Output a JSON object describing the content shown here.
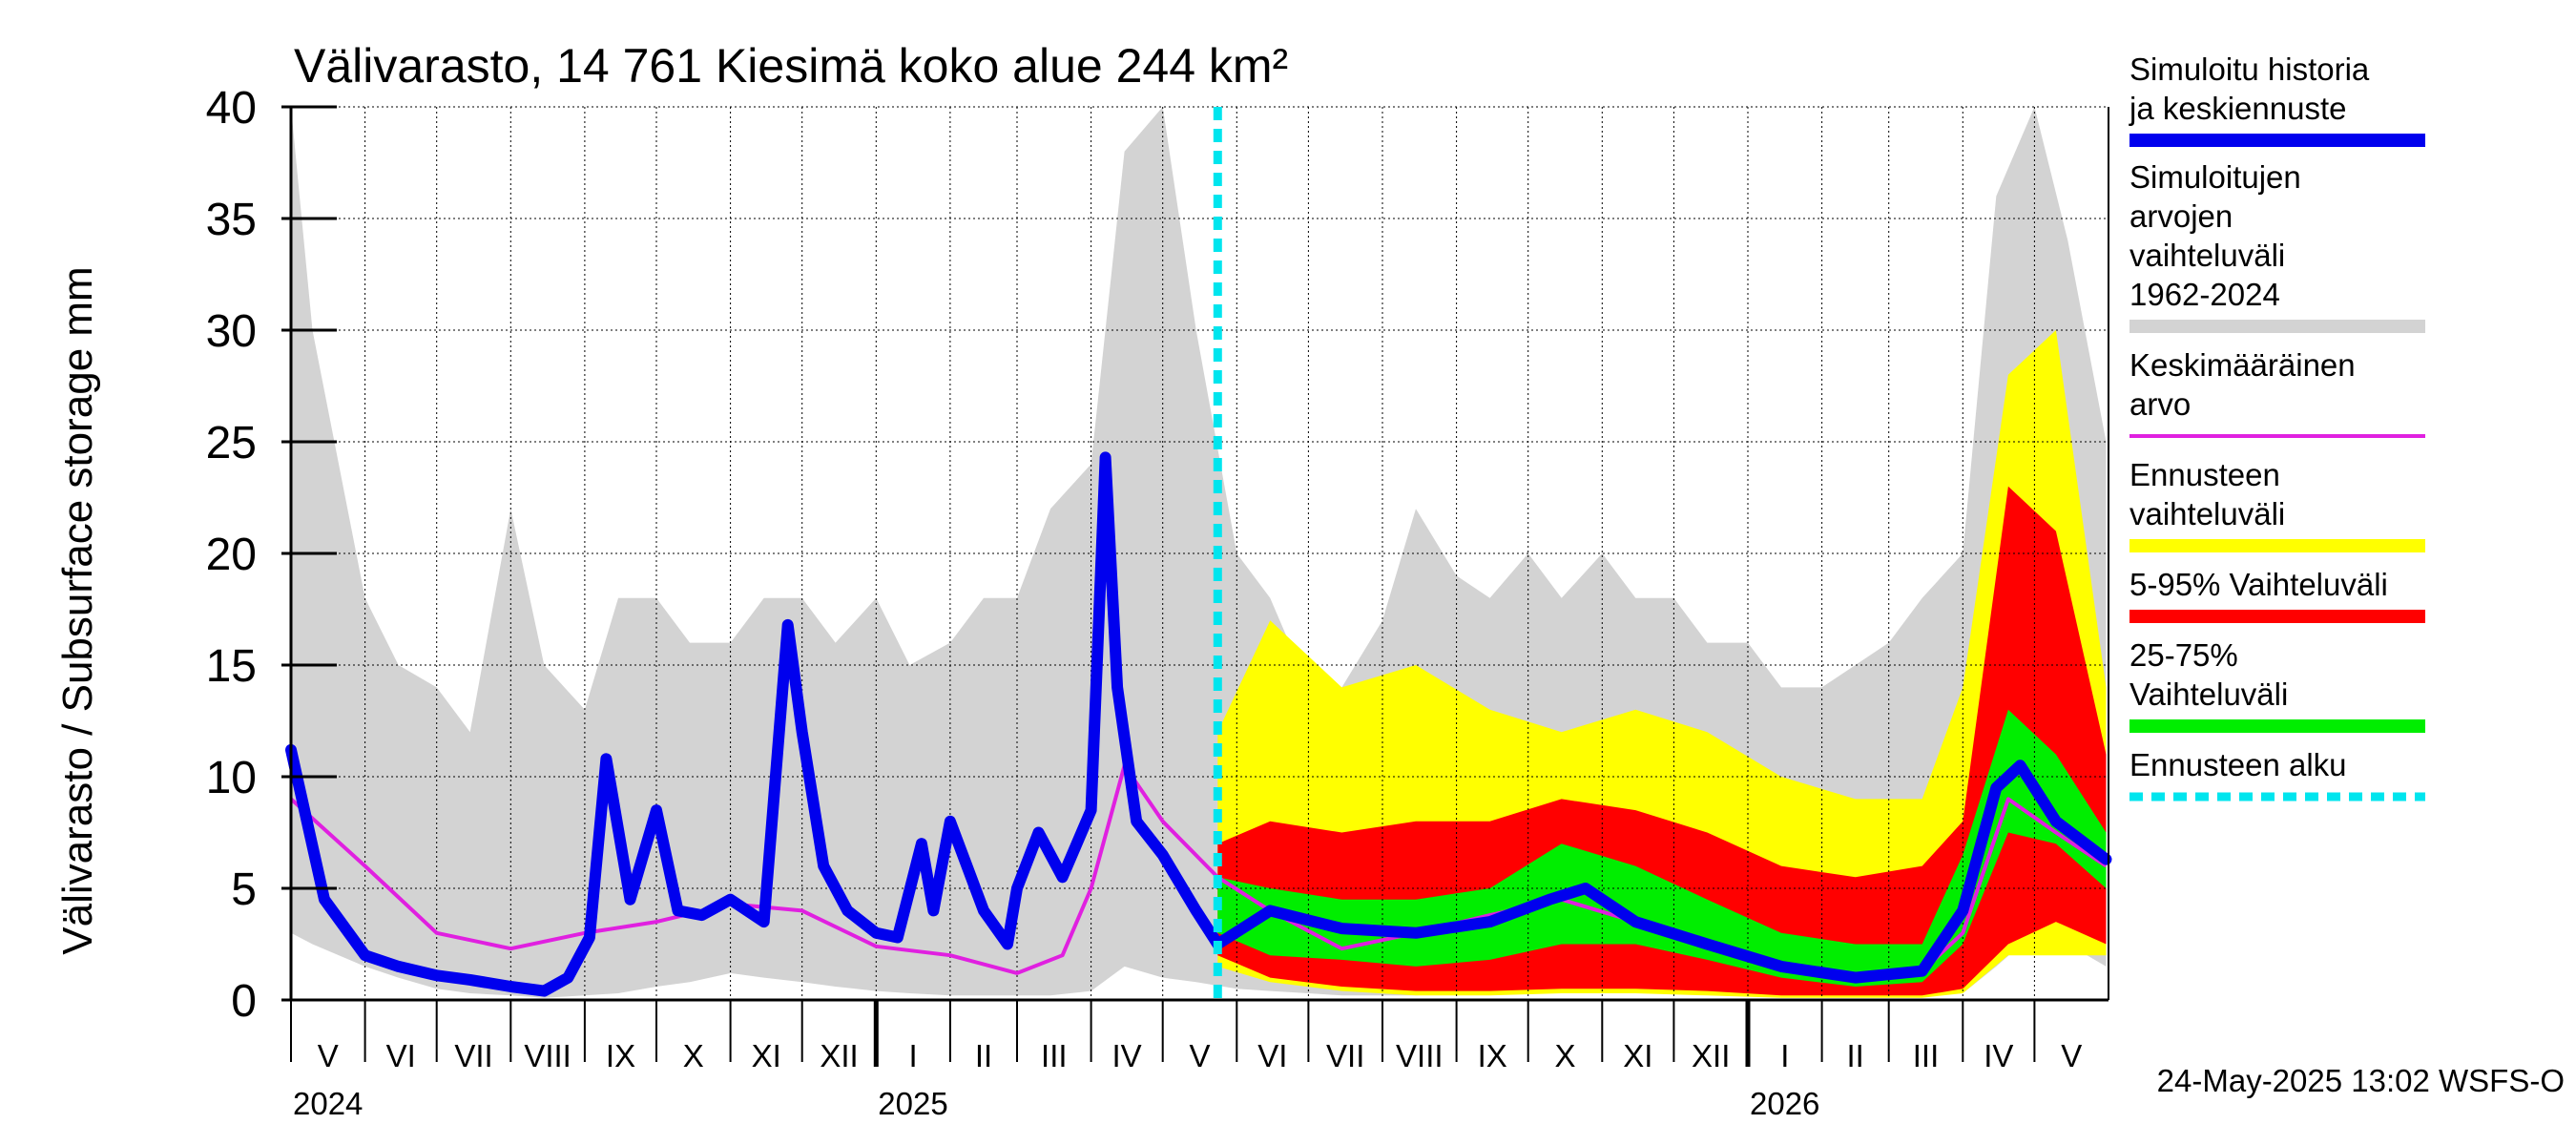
{
  "chart_data": {
    "type": "area",
    "title": "Välivarasto, 14 761 Kiesimä koko alue 244 km²",
    "ylabel": "Välivarasto / Subsurface storage  mm",
    "ylim": [
      0,
      40
    ],
    "yticks": [
      0,
      5,
      10,
      15,
      20,
      25,
      30,
      35,
      40
    ],
    "ytick_labels": [
      "0",
      "5",
      "10",
      "15",
      "20",
      "25",
      "30",
      "35",
      "40"
    ],
    "x_range": [
      "2024-05-01",
      "2026-05-31"
    ],
    "month_labels": [
      "V",
      "VI",
      "VII",
      "VIII",
      "IX",
      "X",
      "XI",
      "XII",
      "I",
      "II",
      "III",
      "IV",
      "V",
      "VI",
      "VII",
      "VIII",
      "IX",
      "X",
      "XI",
      "XII",
      "I",
      "II",
      "III",
      "IV",
      "V"
    ],
    "year_labels": [
      "2024",
      "2025",
      "2026"
    ],
    "grid": true,
    "legend_position": "right",
    "forecast_start": "2025-05-24",
    "footer": "24-May-2025 13:02 WSFS-O",
    "legend": [
      {
        "label": "Simuloitu historia ja keskiennuste",
        "color": "#0000ee"
      },
      {
        "label": "Simuloitujen arvojen vaihteluväli 1962-2024",
        "color": "#d3d3d3"
      },
      {
        "label": "Keskimääräinen arvo",
        "color": "#e020e0"
      },
      {
        "label": "Ennusteen vaihteluväli",
        "color": "#ffff00"
      },
      {
        "label": "5-95% Vaihteluväli",
        "color": "#ff0000"
      },
      {
        "label": "25-75% Vaihteluväli",
        "color": "#00ee00"
      },
      {
        "label": "Ennusteen alku",
        "color": "#00e5ee"
      }
    ],
    "series": [
      {
        "name": "Simuloitu historia ja keskiennuste",
        "x": [
          "2024-05-01",
          "2024-05-15",
          "2024-06-01",
          "2024-06-15",
          "2024-07-01",
          "2024-07-15",
          "2024-08-01",
          "2024-08-15",
          "2024-08-25",
          "2024-09-03",
          "2024-09-10",
          "2024-09-20",
          "2024-10-01",
          "2024-10-10",
          "2024-10-20",
          "2024-11-01",
          "2024-11-15",
          "2024-11-25",
          "2024-12-01",
          "2024-12-10",
          "2024-12-20",
          "2025-01-01",
          "2025-01-10",
          "2025-01-20",
          "2025-01-25",
          "2025-02-01",
          "2025-02-15",
          "2025-02-25",
          "2025-03-01",
          "2025-03-10",
          "2025-03-20",
          "2025-04-01",
          "2025-04-07",
          "2025-04-12",
          "2025-04-20",
          "2025-05-01",
          "2025-05-15",
          "2025-05-24",
          "2025-06-15",
          "2025-07-15",
          "2025-08-15",
          "2025-09-15",
          "2025-10-10",
          "2025-10-25",
          "2025-11-15",
          "2025-12-15",
          "2026-01-15",
          "2026-02-15",
          "2026-03-15",
          "2026-04-01",
          "2026-04-15",
          "2026-04-25",
          "2026-05-10",
          "2026-05-31"
        ],
        "y": [
          11.2,
          4.5,
          2.0,
          1.5,
          1.1,
          0.9,
          0.6,
          0.4,
          1.0,
          2.8,
          10.8,
          4.5,
          8.5,
          4.0,
          3.8,
          4.5,
          3.5,
          16.8,
          12.0,
          6.0,
          4.0,
          3.0,
          2.8,
          7.0,
          4.0,
          8.0,
          4.0,
          2.5,
          5.0,
          7.5,
          5.5,
          8.5,
          24.3,
          14.0,
          8.0,
          6.5,
          4.0,
          2.5,
          4.0,
          3.2,
          3.0,
          3.5,
          4.5,
          5.0,
          3.5,
          2.5,
          1.5,
          1.0,
          1.3,
          4.0,
          9.5,
          10.5,
          8.0,
          6.3
        ]
      },
      {
        "name": "Keskimääräinen arvo",
        "x": [
          "2024-05-01",
          "2024-06-01",
          "2024-07-01",
          "2024-08-01",
          "2024-09-01",
          "2024-10-01",
          "2024-11-01",
          "2024-12-01",
          "2025-01-01",
          "2025-02-01",
          "2025-03-01",
          "2025-03-20",
          "2025-04-01",
          "2025-04-15",
          "2025-05-01",
          "2025-05-24",
          "2025-06-15",
          "2025-07-15",
          "2025-08-15",
          "2025-09-15",
          "2025-10-15",
          "2025-11-15",
          "2025-12-15",
          "2026-01-15",
          "2026-02-15",
          "2026-03-15",
          "2026-04-01",
          "2026-04-20",
          "2026-05-10",
          "2026-05-31"
        ],
        "y": [
          9.0,
          6.0,
          3.0,
          2.3,
          3.0,
          3.5,
          4.3,
          4.0,
          2.4,
          2.0,
          1.2,
          2.0,
          5.0,
          10.5,
          8.0,
          5.5,
          4.0,
          2.3,
          3.0,
          3.8,
          4.5,
          3.5,
          2.5,
          1.6,
          1.1,
          1.3,
          3.0,
          9.0,
          7.5,
          6.0
        ]
      },
      {
        "name": "Ennusteen vaihteluväli",
        "x": [
          "2025-05-24",
          "2025-06-15",
          "2025-07-15",
          "2025-08-15",
          "2025-09-15",
          "2025-10-15",
          "2025-11-15",
          "2025-12-15",
          "2026-01-15",
          "2026-02-15",
          "2026-03-15",
          "2026-04-01",
          "2026-04-20",
          "2026-05-10",
          "2026-05-31"
        ],
        "low": [
          1.5,
          0.8,
          0.4,
          0.2,
          0.2,
          0.3,
          0.3,
          0.2,
          0.1,
          0.1,
          0.1,
          0.3,
          2.0,
          2.0,
          2.0
        ],
        "high": [
          12.0,
          17.0,
          14.0,
          15.0,
          13.0,
          12.0,
          13.0,
          12.0,
          10.0,
          9.0,
          9.0,
          14.0,
          28.0,
          30.0,
          14.0
        ]
      },
      {
        "name": "5-95% Vaihteluväli",
        "x": [
          "2025-05-24",
          "2025-06-15",
          "2025-07-15",
          "2025-08-15",
          "2025-09-15",
          "2025-10-15",
          "2025-11-15",
          "2025-12-15",
          "2026-01-15",
          "2026-02-15",
          "2026-03-15",
          "2026-04-01",
          "2026-04-20",
          "2026-05-10",
          "2026-05-31"
        ],
        "low": [
          2.0,
          1.0,
          0.6,
          0.4,
          0.4,
          0.5,
          0.5,
          0.4,
          0.2,
          0.2,
          0.2,
          0.5,
          2.5,
          3.5,
          2.5
        ],
        "high": [
          7.0,
          8.0,
          7.5,
          8.0,
          8.0,
          9.0,
          8.5,
          7.5,
          6.0,
          5.5,
          6.0,
          8.0,
          23.0,
          21.0,
          11.0
        ]
      },
      {
        "name": "25-75% Vaihteluväli",
        "x": [
          "2025-05-24",
          "2025-06-15",
          "2025-07-15",
          "2025-08-15",
          "2025-09-15",
          "2025-10-15",
          "2025-11-15",
          "2025-12-15",
          "2026-01-15",
          "2026-02-15",
          "2026-03-15",
          "2026-04-01",
          "2026-04-20",
          "2026-05-10",
          "2026-05-31"
        ],
        "low": [
          3.0,
          2.0,
          1.8,
          1.5,
          1.8,
          2.5,
          2.5,
          1.8,
          1.0,
          0.6,
          0.8,
          2.5,
          7.5,
          7.0,
          5.0
        ],
        "high": [
          5.5,
          5.0,
          4.5,
          4.5,
          5.0,
          7.0,
          6.0,
          4.5,
          3.0,
          2.5,
          2.5,
          6.5,
          13.0,
          11.0,
          7.5
        ]
      },
      {
        "name": "Simuloitujen arvojen vaihteluväli 1962-2024",
        "x": [
          "2024-05-01",
          "2024-05-10",
          "2024-06-01",
          "2024-06-15",
          "2024-07-01",
          "2024-07-15",
          "2024-08-01",
          "2024-08-15",
          "2024-09-01",
          "2024-09-15",
          "2024-10-01",
          "2024-10-15",
          "2024-11-01",
          "2024-11-15",
          "2024-12-01",
          "2024-12-15",
          "2025-01-01",
          "2025-01-15",
          "2025-02-01",
          "2025-02-15",
          "2025-03-01",
          "2025-03-15",
          "2025-04-01",
          "2025-04-15",
          "2025-05-01",
          "2025-05-15",
          "2025-06-01",
          "2025-06-15",
          "2025-07-01",
          "2025-07-15",
          "2025-08-01",
          "2025-08-15",
          "2025-09-01",
          "2025-09-15",
          "2025-10-01",
          "2025-10-15",
          "2025-11-01",
          "2025-11-15",
          "2025-12-01",
          "2025-12-15",
          "2026-01-01",
          "2026-01-15",
          "2026-02-01",
          "2026-02-15",
          "2026-03-01",
          "2026-03-15",
          "2026-04-01",
          "2026-04-15",
          "2026-05-01",
          "2026-05-15",
          "2026-05-31"
        ],
        "low": [
          3.0,
          2.5,
          1.5,
          1.0,
          0.5,
          0.3,
          0.2,
          0.1,
          0.2,
          0.3,
          0.6,
          0.8,
          1.2,
          1.0,
          0.8,
          0.6,
          0.4,
          0.3,
          0.2,
          0.2,
          0.2,
          0.2,
          0.4,
          1.5,
          1.0,
          0.8,
          0.5,
          0.4,
          0.3,
          0.2,
          0.2,
          0.2,
          0.3,
          0.5,
          0.6,
          0.8,
          0.7,
          0.6,
          0.5,
          0.4,
          0.3,
          0.2,
          0.2,
          0.2,
          0.2,
          0.2,
          0.3,
          1.5,
          3.0,
          2.5,
          1.5
        ],
        "high": [
          40.0,
          30.0,
          18.0,
          15.0,
          14.0,
          12.0,
          22.0,
          15.0,
          13.0,
          18.0,
          18.0,
          16.0,
          16.0,
          18.0,
          18.0,
          16.0,
          18.0,
          15.0,
          16.0,
          18.0,
          18.0,
          22.0,
          24.0,
          38.0,
          40.0,
          30.0,
          20.0,
          18.0,
          14.0,
          14.0,
          17.0,
          22.0,
          19.0,
          18.0,
          20.0,
          18.0,
          20.0,
          18.0,
          18.0,
          16.0,
          16.0,
          14.0,
          14.0,
          15.0,
          16.0,
          18.0,
          20.0,
          36.0,
          40.0,
          34.0,
          25.0
        ]
      }
    ]
  }
}
